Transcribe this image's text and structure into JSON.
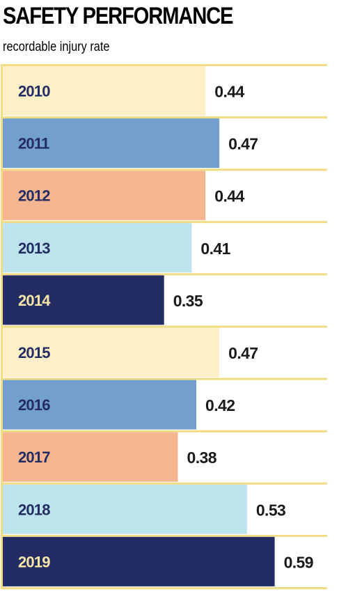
{
  "header": {
    "title": "SAFETY PERFORMANCE",
    "subtitle": "recordable injury rate"
  },
  "colors": {
    "frame": "#f2dc83",
    "label_dark": "#232d63",
    "label_light": "#f7e6a6",
    "value_text": "#1a1a1a"
  },
  "chart_data": {
    "type": "bar",
    "orientation": "horizontal",
    "title": "SAFETY PERFORMANCE",
    "subtitle": "recordable injury rate",
    "categories": [
      "2010",
      "2011",
      "2012",
      "2013",
      "2014",
      "2015",
      "2016",
      "2017",
      "2018",
      "2019"
    ],
    "values": [
      0.44,
      0.47,
      0.44,
      0.41,
      0.35,
      0.47,
      0.42,
      0.38,
      0.53,
      0.59
    ],
    "value_labels": [
      "0.44",
      "0.47",
      "0.44",
      "0.41",
      "0.35",
      "0.47",
      "0.42",
      "0.38",
      "0.53",
      "0.59"
    ],
    "bar_colors": [
      "#fdf0c8",
      "#739fcf",
      "#f3b690",
      "#bde4ec",
      "#232d63",
      "#fdf0c8",
      "#739fcf",
      "#f3b690",
      "#bde4ec",
      "#232d63"
    ],
    "xlim": [
      0,
      0.65
    ],
    "grid": false,
    "legend": "none"
  }
}
